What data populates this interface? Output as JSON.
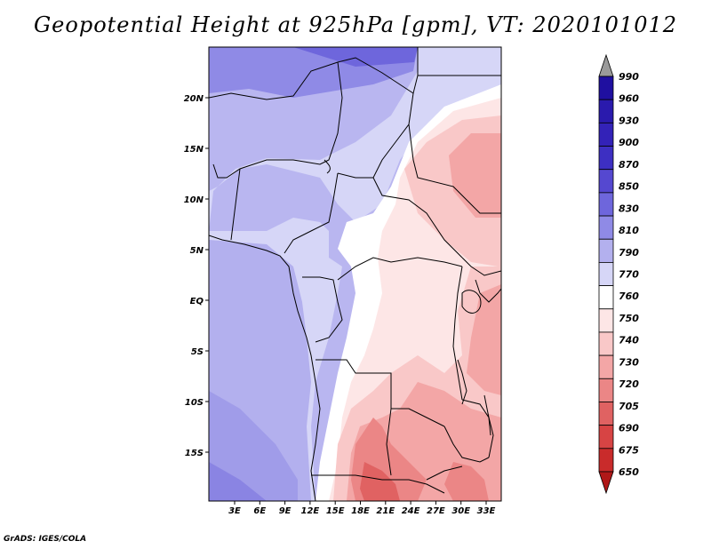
{
  "title": "Geopotential Height at 925hPa [gpm], VT: 2020101012",
  "credit": "GrADS: IGES/COLA",
  "map": {
    "lat_labels": [
      "20N",
      "15N",
      "10N",
      "5N",
      "EQ",
      "5S",
      "10S",
      "15S"
    ],
    "lon_labels": [
      "3E",
      "6E",
      "9E",
      "12E",
      "15E",
      "18E",
      "21E",
      "24E",
      "27E",
      "30E",
      "33E"
    ]
  },
  "colorbar": {
    "levels": [
      "990",
      "960",
      "930",
      "900",
      "870",
      "850",
      "830",
      "810",
      "790",
      "770",
      "760",
      "750",
      "740",
      "730",
      "720",
      "705",
      "690",
      "675",
      "650"
    ],
    "colors": [
      "#9a9a9a",
      "#1f0fa0",
      "#2a1aad",
      "#3322b8",
      "#3d2fc2",
      "#5548d0",
      "#6e66dc",
      "#8f8ae6",
      "#b3b0ee",
      "#d6d6f7",
      "#ffffff",
      "#fde6e6",
      "#f9c8c8",
      "#f3a6a6",
      "#eb8686",
      "#e06262",
      "#d74444",
      "#c92b2b",
      "#b01818"
    ]
  }
}
